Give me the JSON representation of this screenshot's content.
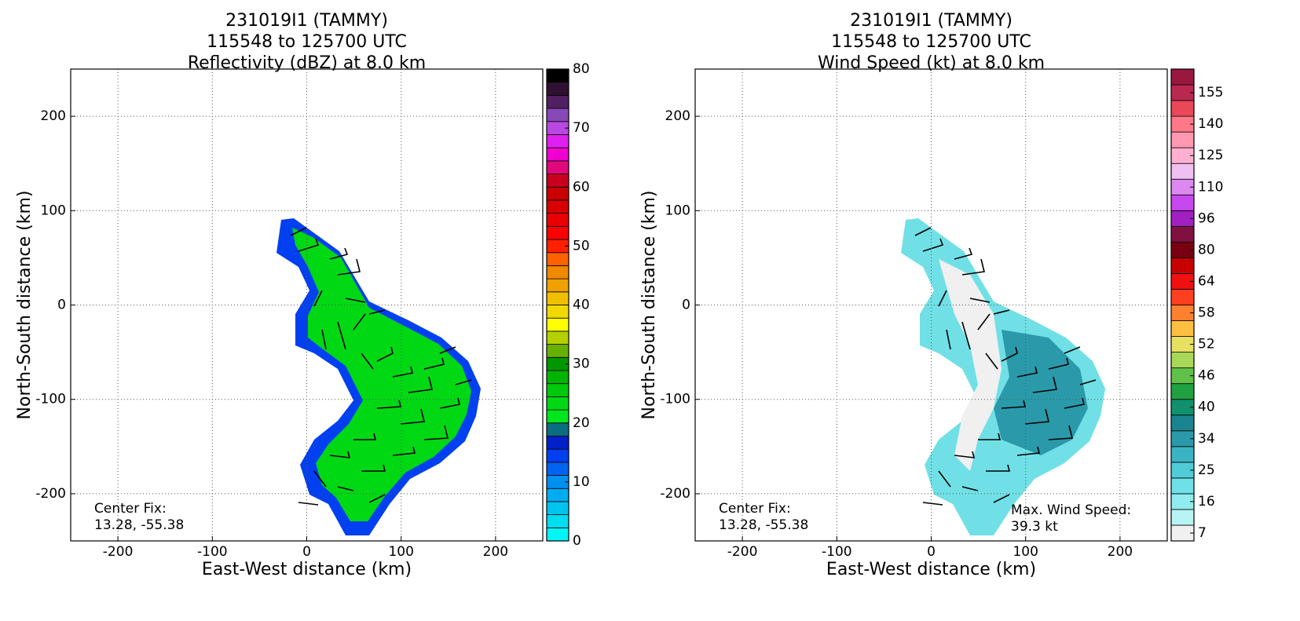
{
  "chart_data": [
    {
      "type": "radar",
      "title": [
        "231019I1 (TAMMY)",
        "115548 to 125700 UTC",
        "Reflectivity (dBZ) at 8.0 km"
      ],
      "xlabel": "East-West distance (km)",
      "ylabel": "North-South distance (km)",
      "xlim": [
        -250,
        250
      ],
      "ylim": [
        -250,
        250
      ],
      "xticks": [
        -200,
        -100,
        0,
        100,
        200
      ],
      "yticks": [
        -200,
        -100,
        0,
        100,
        200
      ],
      "grid": true,
      "annotations": [
        [
          "Center Fix:",
          "13.28, -55.38"
        ]
      ],
      "colorbar": {
        "scale": "linear",
        "lim": [
          0,
          80
        ],
        "ticks": [
          0,
          10,
          20,
          30,
          40,
          50,
          60,
          70,
          80
        ],
        "colors": [
          "#00f5f5",
          "#00dcf0",
          "#00c4f0",
          "#00acf0",
          "#0090f0",
          "#0064f0",
          "#0040f0",
          "#0020c8",
          "#0a6e80",
          "#00e61e",
          "#00d814",
          "#00c80a",
          "#00b400",
          "#009600",
          "#66b000",
          "#b4d000",
          "#ffff00",
          "#f0d800",
          "#f0c000",
          "#f0a000",
          "#f08800",
          "#ff6000",
          "#ff2000",
          "#ff0000",
          "#e80000",
          "#d80000",
          "#c80000",
          "#c8001e",
          "#e0087a",
          "#f000d0",
          "#e020f0",
          "#b848e0",
          "#8848b8",
          "#502060",
          "#301030",
          "#000000"
        ]
      }
    },
    {
      "type": "radar",
      "title": [
        "231019I1 (TAMMY)",
        "115548 to 125700 UTC",
        "Wind Speed (kt) at 8.0 km"
      ],
      "xlabel": "East-West distance (km)",
      "ylabel": "North-South distance (km)",
      "xlim": [
        -250,
        250
      ],
      "ylim": [
        -250,
        250
      ],
      "xticks": [
        -200,
        -100,
        0,
        100,
        200
      ],
      "yticks": [
        -200,
        -100,
        0,
        100,
        200
      ],
      "grid": true,
      "annotations": [
        [
          "Center Fix:",
          "13.28, -55.38"
        ],
        [
          "Max. Wind Speed:",
          "39.3 kt"
        ]
      ],
      "colorbar": {
        "scale": "categorical",
        "ticks": [
          7,
          16,
          25,
          34,
          40,
          46,
          52,
          58,
          64,
          80,
          96,
          110,
          125,
          140,
          155
        ],
        "colors": [
          "#f0f0f0",
          "#b8f4f4",
          "#90ecee",
          "#6ee0e6",
          "#50ccd8",
          "#3ab4c2",
          "#2a9aaa",
          "#1a8490",
          "#10906c",
          "#20a040",
          "#60c048",
          "#a8d858",
          "#e8e060",
          "#ffc040",
          "#ff8030",
          "#ff4020",
          "#f01010",
          "#c80000",
          "#780010",
          "#801040",
          "#a020c0",
          "#c848f0",
          "#dc88f0",
          "#f0c0f0",
          "#ffb0d0",
          "#ff98b0",
          "#ff7888",
          "#e84858",
          "#b82850",
          "#981840"
        ]
      }
    }
  ]
}
